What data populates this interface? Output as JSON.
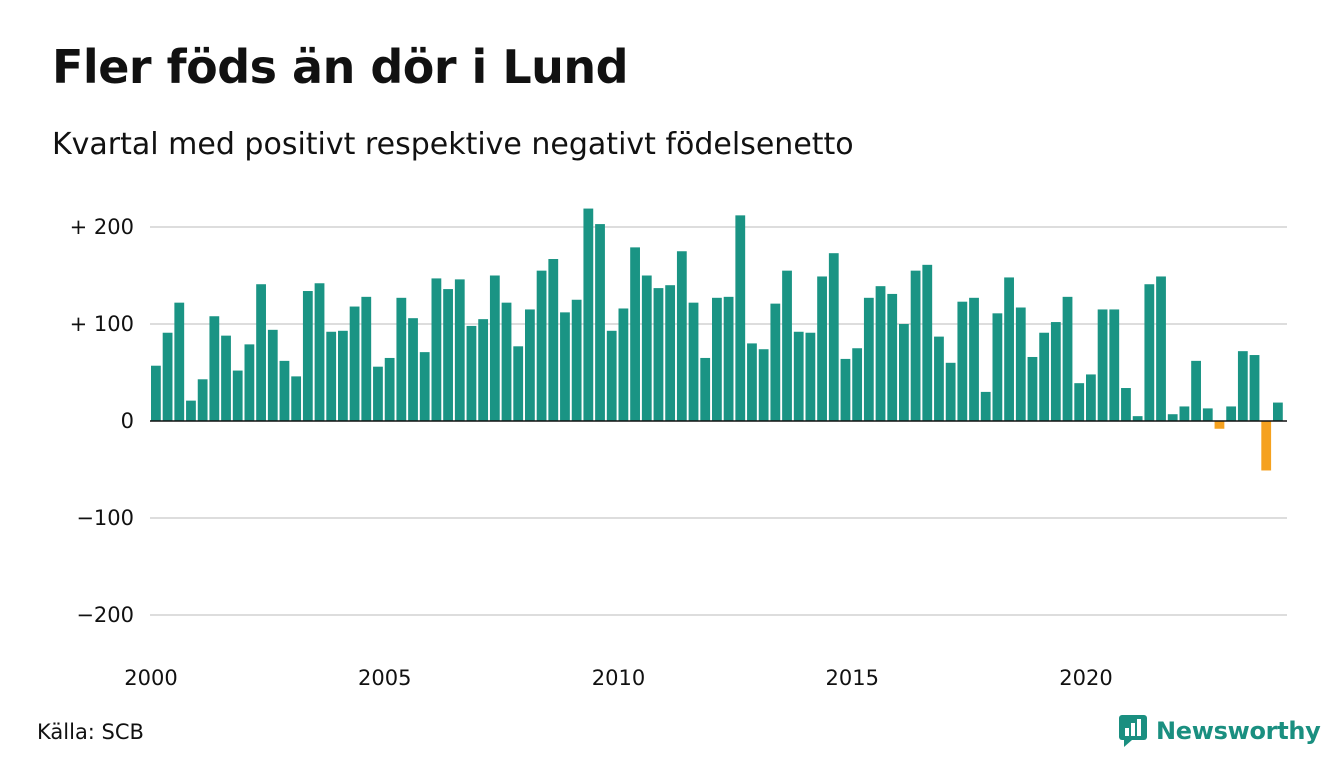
{
  "title": "Fler föds än dör i Lund",
  "subtitle": "Kvartal med positivt respektive negativt födelsenetto",
  "source": "Källa: SCB",
  "brand": {
    "name": "Newsworthy",
    "icon": "newsworthy-logo-icon"
  },
  "colors": {
    "positive": "#1a9484",
    "negative": "#f5a11f",
    "grid": "#dddddd",
    "axis": "#111111",
    "brand": "#1a8f80"
  },
  "chart_data": {
    "type": "bar",
    "title": "Fler föds än dör i Lund",
    "subtitle": "Kvartal med positivt respektive negativt födelsenetto",
    "xlabel": "",
    "ylabel": "",
    "ylim": [
      -200,
      200
    ],
    "grid": true,
    "y_ticks": [
      {
        "value": 200,
        "label": "+ 200"
      },
      {
        "value": 100,
        "label": "+ 100"
      },
      {
        "value": 0,
        "label": "0"
      },
      {
        "value": -100,
        "label": "−100"
      },
      {
        "value": -200,
        "label": "−200"
      }
    ],
    "x_ticks": [
      {
        "value": 2000,
        "label": "2000"
      },
      {
        "value": 2005,
        "label": "2005"
      },
      {
        "value": 2010,
        "label": "2010"
      },
      {
        "value": 2015,
        "label": "2015"
      },
      {
        "value": 2020,
        "label": "2020"
      }
    ],
    "start_year": 2000,
    "periods_per_year": 4,
    "values": [
      57,
      91,
      122,
      21,
      43,
      108,
      88,
      52,
      79,
      141,
      94,
      62,
      46,
      134,
      142,
      92,
      93,
      118,
      128,
      56,
      65,
      127,
      106,
      71,
      147,
      136,
      146,
      98,
      105,
      150,
      122,
      77,
      115,
      155,
      167,
      112,
      125,
      219,
      203,
      93,
      116,
      179,
      150,
      137,
      140,
      175,
      122,
      65,
      127,
      128,
      212,
      80,
      74,
      121,
      155,
      92,
      91,
      149,
      173,
      64,
      75,
      127,
      139,
      131,
      100,
      155,
      161,
      87,
      60,
      123,
      127,
      30,
      111,
      148,
      117,
      66,
      91,
      102,
      128,
      39,
      48,
      115,
      115,
      34,
      5,
      141,
      149,
      7,
      15,
      62,
      13,
      -8,
      15,
      72,
      68,
      -51,
      19
    ]
  }
}
